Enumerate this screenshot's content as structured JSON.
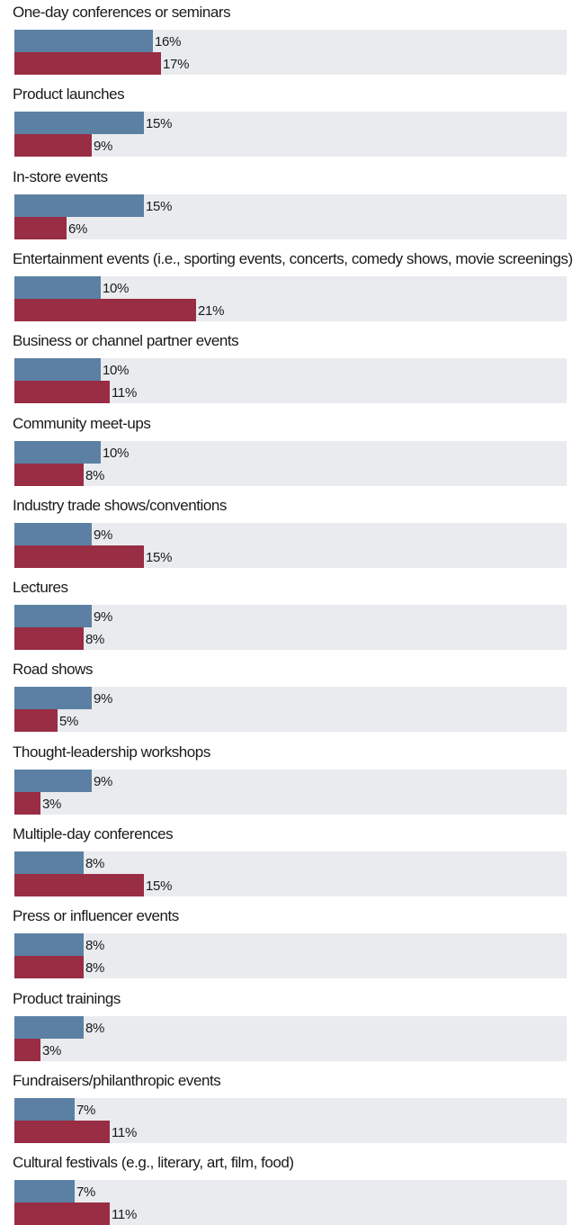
{
  "chart_data": {
    "type": "bar",
    "orientation": "horizontal",
    "unit": "%",
    "colors": [
      "#5b80a3",
      "#982d44"
    ],
    "track_color": "#e9ebee",
    "categories": [
      "One-day conferences or seminars",
      "Product launches",
      "In-store events",
      "Entertainment events (i.e., sporting events, concerts, comedy shows, movie screenings)",
      "Business or channel partner events",
      "Community meet-ups",
      "Industry trade shows/conventions",
      "Lectures",
      "Road shows",
      "Thought-leadership workshops",
      "Multiple-day conferences",
      "Press or influencer events",
      "Product trainings",
      "Fundraisers/philanthropic events",
      "Cultural festivals (e.g., literary, art, film, food)"
    ],
    "series": [
      {
        "values": [
          16,
          15,
          15,
          10,
          10,
          10,
          9,
          9,
          9,
          9,
          8,
          8,
          8,
          7,
          7
        ]
      },
      {
        "values": [
          17,
          9,
          6,
          21,
          11,
          8,
          15,
          8,
          5,
          3,
          15,
          8,
          3,
          11,
          11
        ]
      }
    ],
    "value_labels": [
      [
        "16%",
        "15%",
        "15%",
        "10%",
        "10%",
        "10%",
        "9%",
        "9%",
        "9%",
        "9%",
        "8%",
        "8%",
        "8%",
        "7%",
        "7%"
      ],
      [
        "17%",
        "9%",
        "6%",
        "21%",
        "11%",
        "8%",
        "15%",
        "8%",
        "5%",
        "3%",
        "15%",
        "8%",
        "3%",
        "11%",
        "11%"
      ]
    ]
  }
}
